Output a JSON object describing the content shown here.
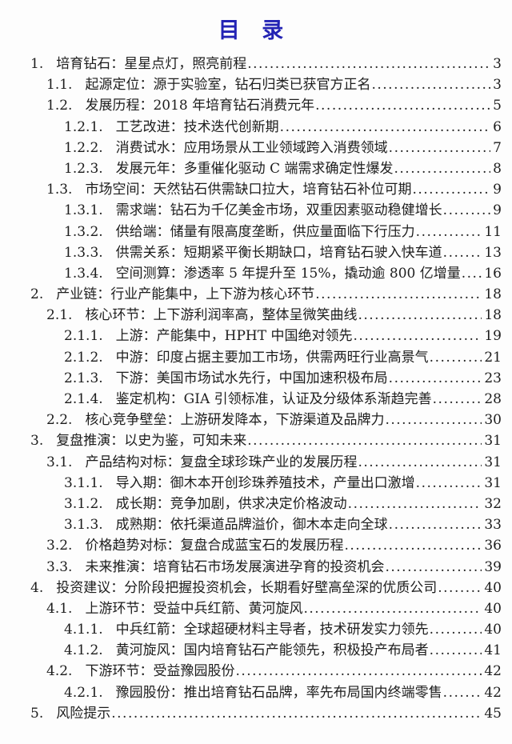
{
  "page": {
    "title": "目 录",
    "title_color": "#2323b4",
    "text_color": "#1d1d1d",
    "background_color": "#fdfdfd"
  },
  "toc": {
    "entries": [
      {
        "level": 1,
        "num": "1.",
        "title": "培育钻石：星星点灯，照亮前程",
        "page": "3"
      },
      {
        "level": 2,
        "num": "1.1.",
        "title": "起源定位：源于实验室，钻石归类已获官方正名",
        "page": "3"
      },
      {
        "level": 2,
        "num": "1.2.",
        "title": "发展历程：2018 年培育钻石消费元年",
        "page": "5"
      },
      {
        "level": 3,
        "num": "1.2.1.",
        "title": "工艺改进：技术迭代创新期",
        "page": "6"
      },
      {
        "level": 3,
        "num": "1.2.2.",
        "title": "消费试水：应用场景从工业领域跨入消费领域",
        "page": "7"
      },
      {
        "level": 3,
        "num": "1.2.3.",
        "title": "发展元年：多重催化驱动 C 端需求确定性爆发",
        "page": "8"
      },
      {
        "level": 2,
        "num": "1.3.",
        "title": "市场空间：天然钻石供需缺口拉大，培育钻石补位可期",
        "page": "9"
      },
      {
        "level": 3,
        "num": "1.3.1.",
        "title": "需求端：钻石为千亿美金市场，双重因素驱动稳健增长",
        "page": "9"
      },
      {
        "level": 3,
        "num": "1.3.2.",
        "title": "供给端：储量有限高度垄断，供应量面临下行压力",
        "page": "11"
      },
      {
        "level": 3,
        "num": "1.3.3.",
        "title": "供需关系：短期紧平衡长期缺口，培育钻石驶入快车道",
        "page": "13"
      },
      {
        "level": 3,
        "num": "1.3.4.",
        "title": "空间测算：渗透率 5 年提升至 15%，撬动逾 800 亿增量",
        "page": "16"
      },
      {
        "level": 1,
        "num": "2.",
        "title": "产业链：行业产能集中，上下游为核心环节",
        "page": "18"
      },
      {
        "level": 2,
        "num": "2.1.",
        "title": "核心环节：上下游利润率高，整体呈微笑曲线",
        "page": "18"
      },
      {
        "level": 3,
        "num": "2.1.1.",
        "title": "上游：产能集中，HPHT 中国绝对领先",
        "page": "19"
      },
      {
        "level": 3,
        "num": "2.1.2.",
        "title": "中游：印度占据主要加工市场，供需两旺行业高景气",
        "page": "21"
      },
      {
        "level": 3,
        "num": "2.1.3.",
        "title": "下游：美国市场试水先行，中国加速积极布局",
        "page": "23"
      },
      {
        "level": 3,
        "num": "2.1.4.",
        "title": "鉴定机构：GIA 引领标准，认证及分级体系渐趋完善",
        "page": "28"
      },
      {
        "level": 2,
        "num": "2.2.",
        "title": "核心竞争壁垒：上游研发降本，下游渠道及品牌力",
        "page": "30"
      },
      {
        "level": 1,
        "num": "3.",
        "title": "复盘推演：以史为鉴，可知未来",
        "page": "31"
      },
      {
        "level": 2,
        "num": "3.1.",
        "title": "产品结构对标：复盘全球珍珠产业的发展历程",
        "page": "31"
      },
      {
        "level": 3,
        "num": "3.1.1.",
        "title": "导入期：御木本开创珍珠养殖技术，产量出口激增",
        "page": "31"
      },
      {
        "level": 3,
        "num": "3.1.2.",
        "title": "成长期：竞争加剧，供求决定价格波动",
        "page": "32"
      },
      {
        "level": 3,
        "num": "3.1.3.",
        "title": "成熟期：依托渠道品牌溢价，御木本走向全球",
        "page": "33"
      },
      {
        "level": 2,
        "num": "3.2.",
        "title": "价格趋势对标：复盘合成蓝宝石的发展历程",
        "page": "36"
      },
      {
        "level": 2,
        "num": "3.3.",
        "title": "未来推演：培育钻石市场发展演进孕育的投资机会",
        "page": "39"
      },
      {
        "level": 1,
        "num": "4.",
        "title": "投资建议：分阶段把握投资机会，长期看好壁高垒深的优质公司",
        "page": "40"
      },
      {
        "level": 2,
        "num": "4.1.",
        "title": "上游环节：受益中兵红箭、黄河旋风",
        "page": "40"
      },
      {
        "level": 3,
        "num": "4.1.1.",
        "title": "中兵红箭：全球超硬材料主导者，技术研发实力领先",
        "page": "40"
      },
      {
        "level": 3,
        "num": "4.1.2.",
        "title": "黄河旋风：国内培育钻石产能领先，积极投产布局者",
        "page": "41"
      },
      {
        "level": 2,
        "num": "4.2.",
        "title": "下游环节：受益豫园股份",
        "page": "42"
      },
      {
        "level": 3,
        "num": "4.2.1.",
        "title": "豫园股份：推出培育钻石品牌，率先布局国内终端零售",
        "page": "42"
      },
      {
        "level": 1,
        "num": "5.",
        "title": "风险提示",
        "page": "45"
      }
    ]
  }
}
